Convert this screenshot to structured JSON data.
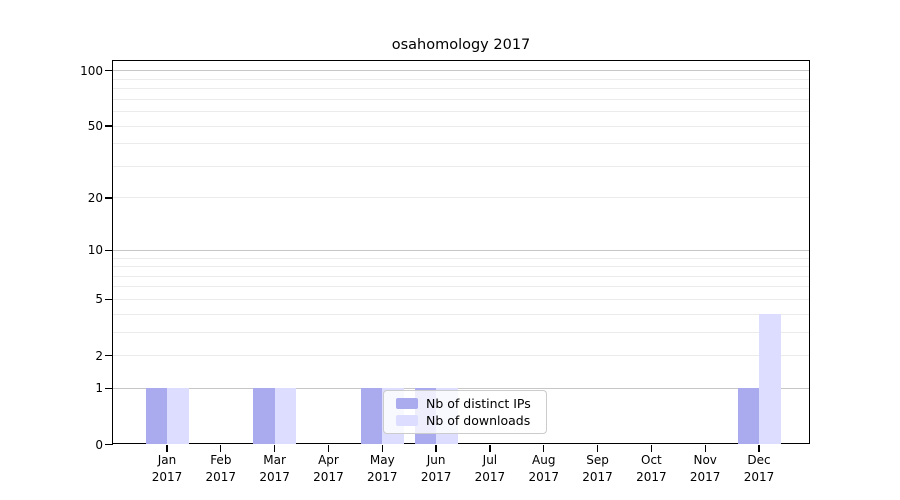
{
  "title": "osahomology 2017",
  "chart_data": {
    "type": "bar",
    "title": "osahomology 2017",
    "categories": [
      "Jan 2017",
      "Feb 2017",
      "Mar 2017",
      "Apr 2017",
      "May 2017",
      "Jun 2017",
      "Jul 2017",
      "Aug 2017",
      "Sep 2017",
      "Oct 2017",
      "Nov 2017",
      "Dec 2017"
    ],
    "series": [
      {
        "name": "Nb of distinct IPs",
        "color": "#aaaaee",
        "values": [
          1,
          0,
          1,
          0,
          1,
          1,
          0,
          0,
          0,
          0,
          0,
          1
        ]
      },
      {
        "name": "Nb of downloads",
        "color": "#ddddff",
        "values": [
          1,
          0,
          1,
          0,
          1,
          1,
          0,
          0,
          0,
          0,
          0,
          4
        ]
      }
    ],
    "xlabel": "",
    "ylabel": "",
    "yscale": "log1p",
    "ylim": [
      0,
      113
    ],
    "yticks": [
      0,
      1,
      2,
      5,
      10,
      20,
      50,
      100
    ],
    "grid": true,
    "grid_decade_lines": [
      1,
      10,
      100
    ],
    "grid_minor_lines": [
      2,
      3,
      4,
      5,
      6,
      7,
      8,
      9,
      20,
      30,
      40,
      50,
      60,
      70,
      80,
      90
    ],
    "legend_position": "lower center",
    "legend_labels": [
      "Nb of distinct IPs",
      "Nb of downloads"
    ]
  },
  "colors": {
    "bar_distinct_ips": "#aaaaee",
    "bar_downloads": "#ddddff",
    "grid_decade": "#c6c6c6",
    "grid_minor": "#ebebeb",
    "axis": "#000000",
    "legend_border": "#cccccc",
    "background": "#ffffff"
  }
}
